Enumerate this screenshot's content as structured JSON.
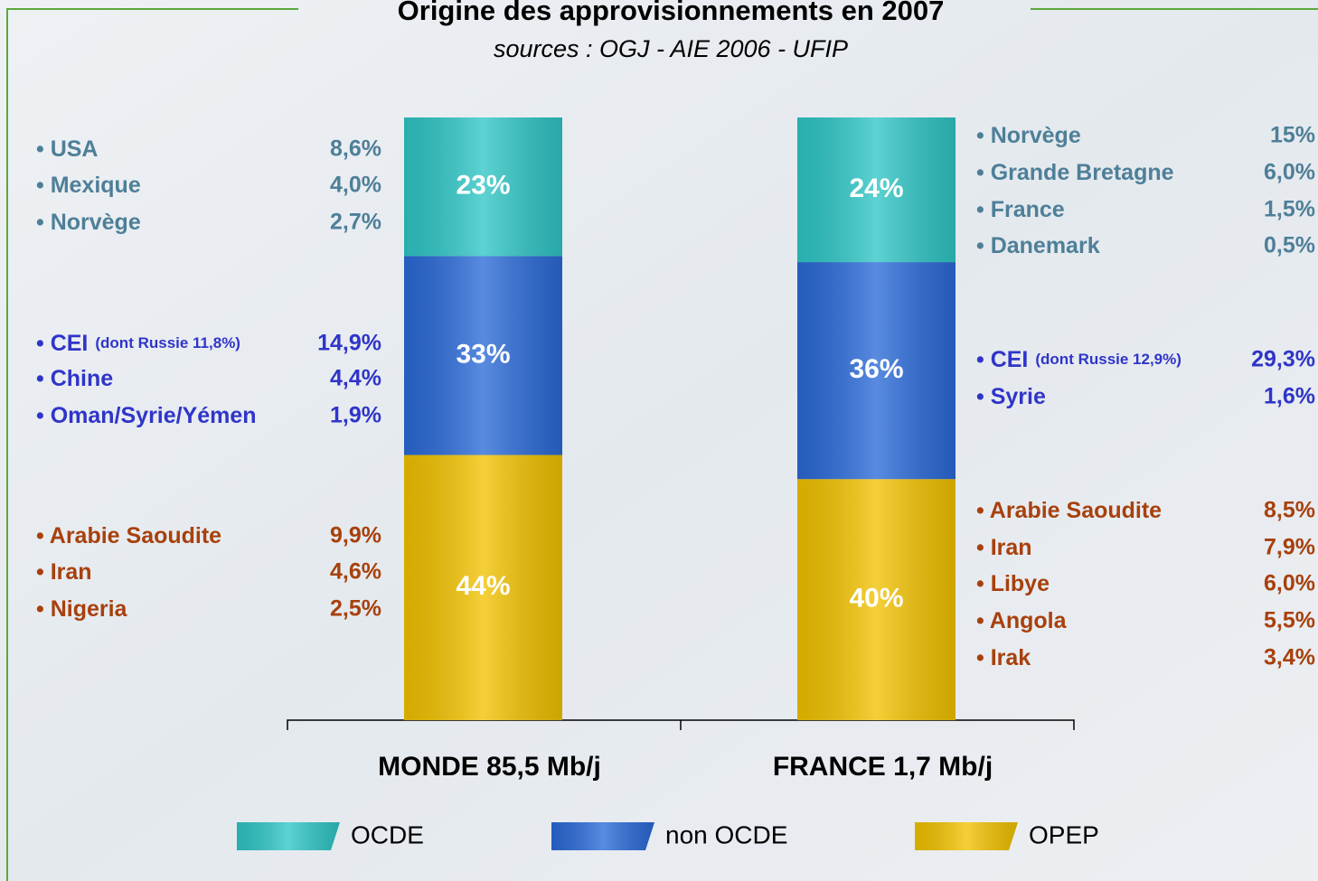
{
  "chart_data": {
    "type": "bar",
    "stacked": true,
    "title": "Origine des approvisionnements en 2007",
    "subtitle": "sources : OGJ - AIE 2006 - UFIP",
    "categories": [
      "MONDE 85,5 Mb/j",
      "FRANCE 1,7 Mb/j"
    ],
    "series": [
      {
        "name": "OCDE",
        "color": "#2fc6c6",
        "values": [
          23,
          24
        ],
        "value_labels": [
          "23%",
          "24%"
        ]
      },
      {
        "name": "non OCDE",
        "color": "#2a6ad8",
        "values": [
          33,
          36
        ],
        "value_labels": [
          "33%",
          "36%"
        ]
      },
      {
        "name": "OPEP",
        "color": "#f2c200",
        "values": [
          44,
          40
        ],
        "value_labels": [
          "44%",
          "40%"
        ]
      }
    ],
    "annotations": {
      "left": [
        {
          "color": "#4e7f98",
          "items": [
            {
              "name": "• USA",
              "value": "8,6%"
            },
            {
              "name": "• Mexique",
              "value": "4,0%"
            },
            {
              "name": "• Norvège",
              "value": "2,7%"
            }
          ]
        },
        {
          "color": "#2f35c8",
          "items": [
            {
              "name": "• CEI",
              "note": "(dont Russie 11,8%)",
              "value": "14,9%"
            },
            {
              "name": "• Chine",
              "value": "4,4%"
            },
            {
              "name": "• Oman/Syrie/Yémen",
              "value": "1,9%"
            }
          ]
        },
        {
          "color": "#a8400c",
          "items": [
            {
              "name": "• Arabie Saoudite",
              "value": "9,9%"
            },
            {
              "name": "• Iran",
              "value": "4,6%"
            },
            {
              "name": "• Nigeria",
              "value": "2,5%"
            }
          ]
        }
      ],
      "right": [
        {
          "color": "#4e7f98",
          "items": [
            {
              "name": "• Norvège",
              "value": "15%"
            },
            {
              "name": "• Grande Bretagne",
              "value": "6,0%"
            },
            {
              "name": "• France",
              "value": "1,5%"
            },
            {
              "name": "• Danemark",
              "value": "0,5%"
            }
          ]
        },
        {
          "color": "#2f35c8",
          "items": [
            {
              "name": "• CEI",
              "note": "(dont Russie 12,9%)",
              "value": "29,3%"
            },
            {
              "name": "• Syrie",
              "value": "1,6%"
            }
          ]
        },
        {
          "color": "#a8400c",
          "items": [
            {
              "name": "• Arabie Saoudite",
              "value": "8,5%"
            },
            {
              "name": "• Iran",
              "value": "7,9%"
            },
            {
              "name": "• Libye",
              "value": "6,0%"
            },
            {
              "name": "• Angola",
              "value": "5,5%"
            },
            {
              "name": "• Irak",
              "value": "3,4%"
            }
          ]
        }
      ]
    }
  }
}
